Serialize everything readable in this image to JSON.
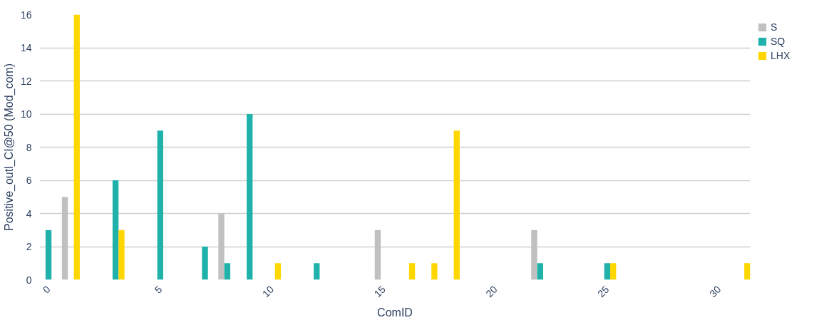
{
  "chart_data": {
    "type": "bar",
    "xlabel": "ComID",
    "ylabel": "Positive_outl_CI@50 (Mod_com)",
    "x": [
      0,
      1,
      2,
      3,
      4,
      5,
      6,
      7,
      8,
      9,
      10,
      11,
      12,
      13,
      14,
      15,
      16,
      17,
      18,
      19,
      20,
      21,
      22,
      23,
      24,
      25,
      26,
      27,
      28,
      29,
      30,
      31
    ],
    "series": [
      {
        "name": "S",
        "color": "#c0c0c0",
        "values": [
          0,
          5,
          0,
          0,
          0,
          0,
          0,
          0,
          4,
          0,
          0,
          0,
          0,
          0,
          0,
          3,
          0,
          0,
          0,
          0,
          0,
          0,
          3,
          0,
          0,
          0,
          0,
          0,
          0,
          0,
          0,
          0
        ]
      },
      {
        "name": "SQ",
        "color": "#20b2aa",
        "values": [
          3,
          0,
          0,
          6,
          0,
          9,
          0,
          2,
          1,
          10,
          0,
          0,
          1,
          0,
          0,
          0,
          0,
          0,
          0,
          0,
          0,
          0,
          1,
          0,
          0,
          1,
          0,
          0,
          0,
          0,
          0,
          0
        ]
      },
      {
        "name": "LHX",
        "color": "#ffd700",
        "values": [
          0,
          16,
          0,
          3,
          0,
          0,
          0,
          0,
          0,
          0,
          1,
          0,
          0,
          0,
          0,
          0,
          1,
          1,
          9,
          0,
          0,
          0,
          0,
          0,
          0,
          1,
          0,
          0,
          0,
          0,
          0,
          1
        ]
      }
    ],
    "xlim": [
      -0.4,
      31.4
    ],
    "xticks": [
      0,
      5,
      10,
      15,
      20,
      25,
      30
    ],
    "ylim": [
      0,
      16
    ],
    "yticks": [
      0,
      2,
      4,
      6,
      8,
      10,
      12,
      14,
      16
    ],
    "grid": "y",
    "legend": "top right"
  }
}
